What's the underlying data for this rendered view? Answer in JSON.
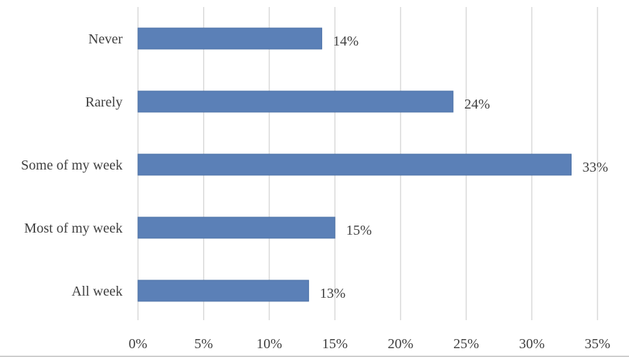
{
  "chart_data": {
    "type": "bar",
    "orientation": "horizontal",
    "categories": [
      "Never",
      "Rarely",
      "Some of my week",
      "Most of my week",
      "All week"
    ],
    "values": [
      14,
      24,
      33,
      15,
      13
    ],
    "data_labels": [
      "14%",
      "24%",
      "33%",
      "15%",
      "13%"
    ],
    "xlim": [
      0,
      35
    ],
    "x_ticks": [
      0,
      5,
      10,
      15,
      20,
      25,
      30,
      35
    ],
    "x_tick_labels": [
      "0%",
      "5%",
      "10%",
      "15%",
      "20%",
      "25%",
      "30%",
      "35%"
    ],
    "title": "",
    "xlabel": "",
    "ylabel": "",
    "grid": "vertical",
    "legend": "none",
    "bar_color": "#5b80b7"
  }
}
